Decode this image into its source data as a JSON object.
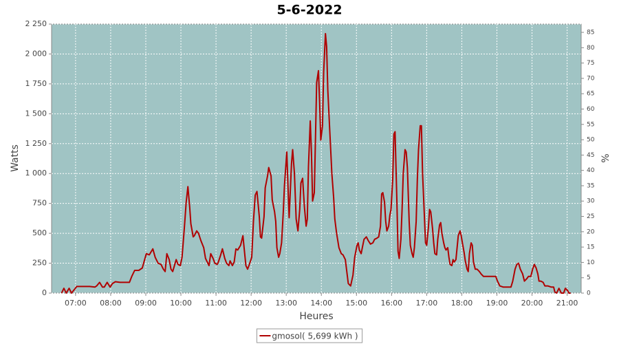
{
  "chart_data": {
    "type": "line",
    "title": "5-6-2022",
    "x_label": "Heures",
    "y_label": "Watts",
    "y2_label": "%",
    "x": [
      "06:36",
      "06:40",
      "06:44",
      "06:49",
      "06:53",
      "06:58",
      "07:02",
      "07:12",
      "07:24",
      "07:33",
      "07:36",
      "07:41",
      "07:46",
      "07:49",
      "07:54",
      "07:59",
      "08:03",
      "08:08",
      "08:16",
      "08:25",
      "08:32",
      "08:36",
      "08:41",
      "08:48",
      "08:54",
      "08:58",
      "09:01",
      "09:06",
      "09:12",
      "09:16",
      "09:21",
      "09:26",
      "09:30",
      "09:33",
      "09:36",
      "09:40",
      "09:43",
      "09:46",
      "09:52",
      "09:55",
      "09:59",
      "10:02",
      "10:06",
      "10:09",
      "10:12",
      "10:15",
      "10:17",
      "10:21",
      "10:23",
      "10:27",
      "10:30",
      "10:34",
      "10:39",
      "10:42",
      "10:46",
      "10:48",
      "10:51",
      "10:55",
      "10:58",
      "11:02",
      "11:04",
      "11:08",
      "11:11",
      "11:15",
      "11:18",
      "11:22",
      "11:24",
      "11:28",
      "11:31",
      "11:34",
      "11:37",
      "11:42",
      "11:46",
      "11:48",
      "11:51",
      "11:54",
      "11:57",
      "12:01",
      "12:04",
      "12:07",
      "12:10",
      "12:14",
      "12:16",
      "12:18",
      "12:22",
      "12:24",
      "12:28",
      "12:30",
      "12:34",
      "12:36",
      "12:40",
      "12:42",
      "12:44",
      "12:47",
      "12:49",
      "12:52",
      "12:55",
      "12:57",
      "13:01",
      "13:03",
      "13:05",
      "13:09",
      "13:11",
      "13:14",
      "13:17",
      "13:20",
      "13:23",
      "13:25",
      "13:28",
      "13:31",
      "13:34",
      "13:36",
      "13:38",
      "13:41",
      "13:43",
      "13:45",
      "13:48",
      "13:50",
      "13:52",
      "13:55",
      "13:57",
      "13:59",
      "14:02",
      "14:04",
      "14:07",
      "14:09",
      "14:11",
      "14:14",
      "14:16",
      "14:18",
      "14:21",
      "14:23",
      "14:26",
      "14:30",
      "14:34",
      "14:37",
      "14:41",
      "14:43",
      "14:46",
      "14:50",
      "14:54",
      "14:57",
      "15:01",
      "15:03",
      "15:05",
      "15:08",
      "15:10",
      "15:13",
      "15:17",
      "15:20",
      "15:24",
      "15:28",
      "15:31",
      "15:35",
      "15:38",
      "15:41",
      "15:43",
      "15:45",
      "15:48",
      "15:50",
      "15:52",
      "15:55",
      "15:57",
      "15:59",
      "16:02",
      "16:04",
      "16:06",
      "16:09",
      "16:11",
      "16:13",
      "16:16",
      "16:18",
      "16:20",
      "16:23",
      "16:25",
      "16:27",
      "16:30",
      "16:32",
      "16:35",
      "16:37",
      "16:39",
      "16:42",
      "16:44",
      "16:46",
      "16:49",
      "16:51",
      "16:53",
      "16:56",
      "16:58",
      "17:00",
      "17:03",
      "17:05",
      "17:07",
      "17:10",
      "17:12",
      "17:14",
      "17:17",
      "17:19",
      "17:22",
      "17:24",
      "17:26",
      "17:29",
      "17:31",
      "17:33",
      "17:36",
      "17:38",
      "17:40",
      "17:43",
      "17:45",
      "17:47",
      "17:50",
      "17:52",
      "17:54",
      "17:57",
      "17:59",
      "18:01",
      "18:04",
      "18:06",
      "18:09",
      "18:11",
      "18:13",
      "18:16",
      "18:18",
      "18:20",
      "18:23",
      "18:26",
      "18:30",
      "18:33",
      "18:37",
      "18:43",
      "18:49",
      "18:55",
      "18:58",
      "19:01",
      "19:05",
      "19:11",
      "19:18",
      "19:24",
      "19:27",
      "19:31",
      "19:34",
      "19:37",
      "19:40",
      "19:44",
      "19:47",
      "19:51",
      "19:54",
      "19:58",
      "20:01",
      "20:04",
      "20:07",
      "20:10",
      "20:12",
      "20:15",
      "20:19",
      "20:22",
      "20:27",
      "20:33",
      "20:37",
      "20:39",
      "20:42",
      "20:46",
      "20:50",
      "20:54",
      "20:57",
      "21:01",
      "21:03",
      "21:06"
    ],
    "series": [
      {
        "name": "gmosol( 5,699 kWh )",
        "color": "#b00000",
        "values": [
          0,
          40,
          0,
          40,
          0,
          30,
          55,
          55,
          55,
          50,
          60,
          90,
          50,
          50,
          90,
          50,
          80,
          95,
          90,
          90,
          90,
          140,
          190,
          190,
          210,
          280,
          330,
          320,
          370,
          300,
          250,
          240,
          200,
          180,
          330,
          280,
          200,
          180,
          280,
          240,
          230,
          300,
          550,
          760,
          890,
          720,
          580,
          470,
          480,
          520,
          500,
          440,
          380,
          290,
          250,
          230,
          330,
          290,
          250,
          240,
          260,
          320,
          370,
          290,
          250,
          230,
          270,
          230,
          260,
          370,
          360,
          400,
          480,
          380,
          230,
          200,
          240,
          300,
          600,
          820,
          850,
          640,
          470,
          460,
          640,
          880,
          980,
          1050,
          980,
          780,
          680,
          600,
          380,
          300,
          330,
          420,
          680,
          900,
          1180,
          900,
          630,
          1080,
          1200,
          1000,
          620,
          520,
          700,
          920,
          960,
          720,
          560,
          620,
          1060,
          1440,
          1180,
          770,
          840,
          1300,
          1760,
          1860,
          1600,
          1280,
          1400,
          1850,
          2170,
          2060,
          1700,
          1400,
          1200,
          1000,
          800,
          620,
          500,
          380,
          330,
          320,
          280,
          200,
          80,
          60,
          150,
          300,
          400,
          420,
          360,
          330,
          380,
          450,
          470,
          440,
          410,
          420,
          450,
          460,
          470,
          560,
          830,
          840,
          760,
          600,
          520,
          560,
          650,
          700,
          950,
          1330,
          1350,
          780,
          350,
          290,
          450,
          700,
          1000,
          1200,
          1180,
          1050,
          600,
          400,
          330,
          300,
          380,
          600,
          950,
          1200,
          1400,
          1400,
          1000,
          650,
          420,
          400,
          550,
          700,
          680,
          540,
          420,
          330,
          320,
          450,
          570,
          590,
          500,
          420,
          380,
          360,
          380,
          300,
          240,
          230,
          280,
          260,
          280,
          380,
          480,
          520,
          480,
          420,
          340,
          270,
          200,
          180,
          330,
          420,
          400,
          260,
          200,
          200,
          180,
          160,
          140,
          140,
          140,
          140,
          140,
          100,
          60,
          50,
          50,
          50,
          100,
          200,
          240,
          250,
          200,
          160,
          100,
          120,
          140,
          140,
          200,
          240,
          210,
          160,
          100,
          100,
          90,
          60,
          60,
          50,
          50,
          10,
          0,
          40,
          0,
          0,
          40,
          20,
          0,
          0
        ]
      }
    ],
    "xlim": [
      "06:19",
      "21:24"
    ],
    "xticks": [
      "07:00",
      "08:00",
      "09:00",
      "10:00",
      "11:00",
      "12:00",
      "13:00",
      "14:00",
      "15:00",
      "16:00",
      "17:00",
      "18:00",
      "19:00",
      "20:00",
      "21:00"
    ],
    "ylim": [
      0,
      2250
    ],
    "yticks": [
      0,
      250,
      500,
      750,
      {
        "value": 1000,
        "label": "1 000"
      },
      {
        "value": 1250,
        "label": "1 250"
      },
      {
        "value": 1500,
        "label": "1 500"
      },
      {
        "value": 1750,
        "label": "1 750"
      },
      {
        "value": 2000,
        "label": "2 000"
      },
      {
        "value": 2250,
        "label": "2 250"
      }
    ],
    "y2lim": [
      0,
      87.7
    ],
    "y2ticks": [
      0,
      5,
      10,
      15,
      20,
      25,
      30,
      35,
      40,
      45,
      50,
      55,
      60,
      65,
      70,
      75,
      80,
      85
    ],
    "grid": true,
    "background": "#a0c4c4",
    "legend": "bottom"
  }
}
